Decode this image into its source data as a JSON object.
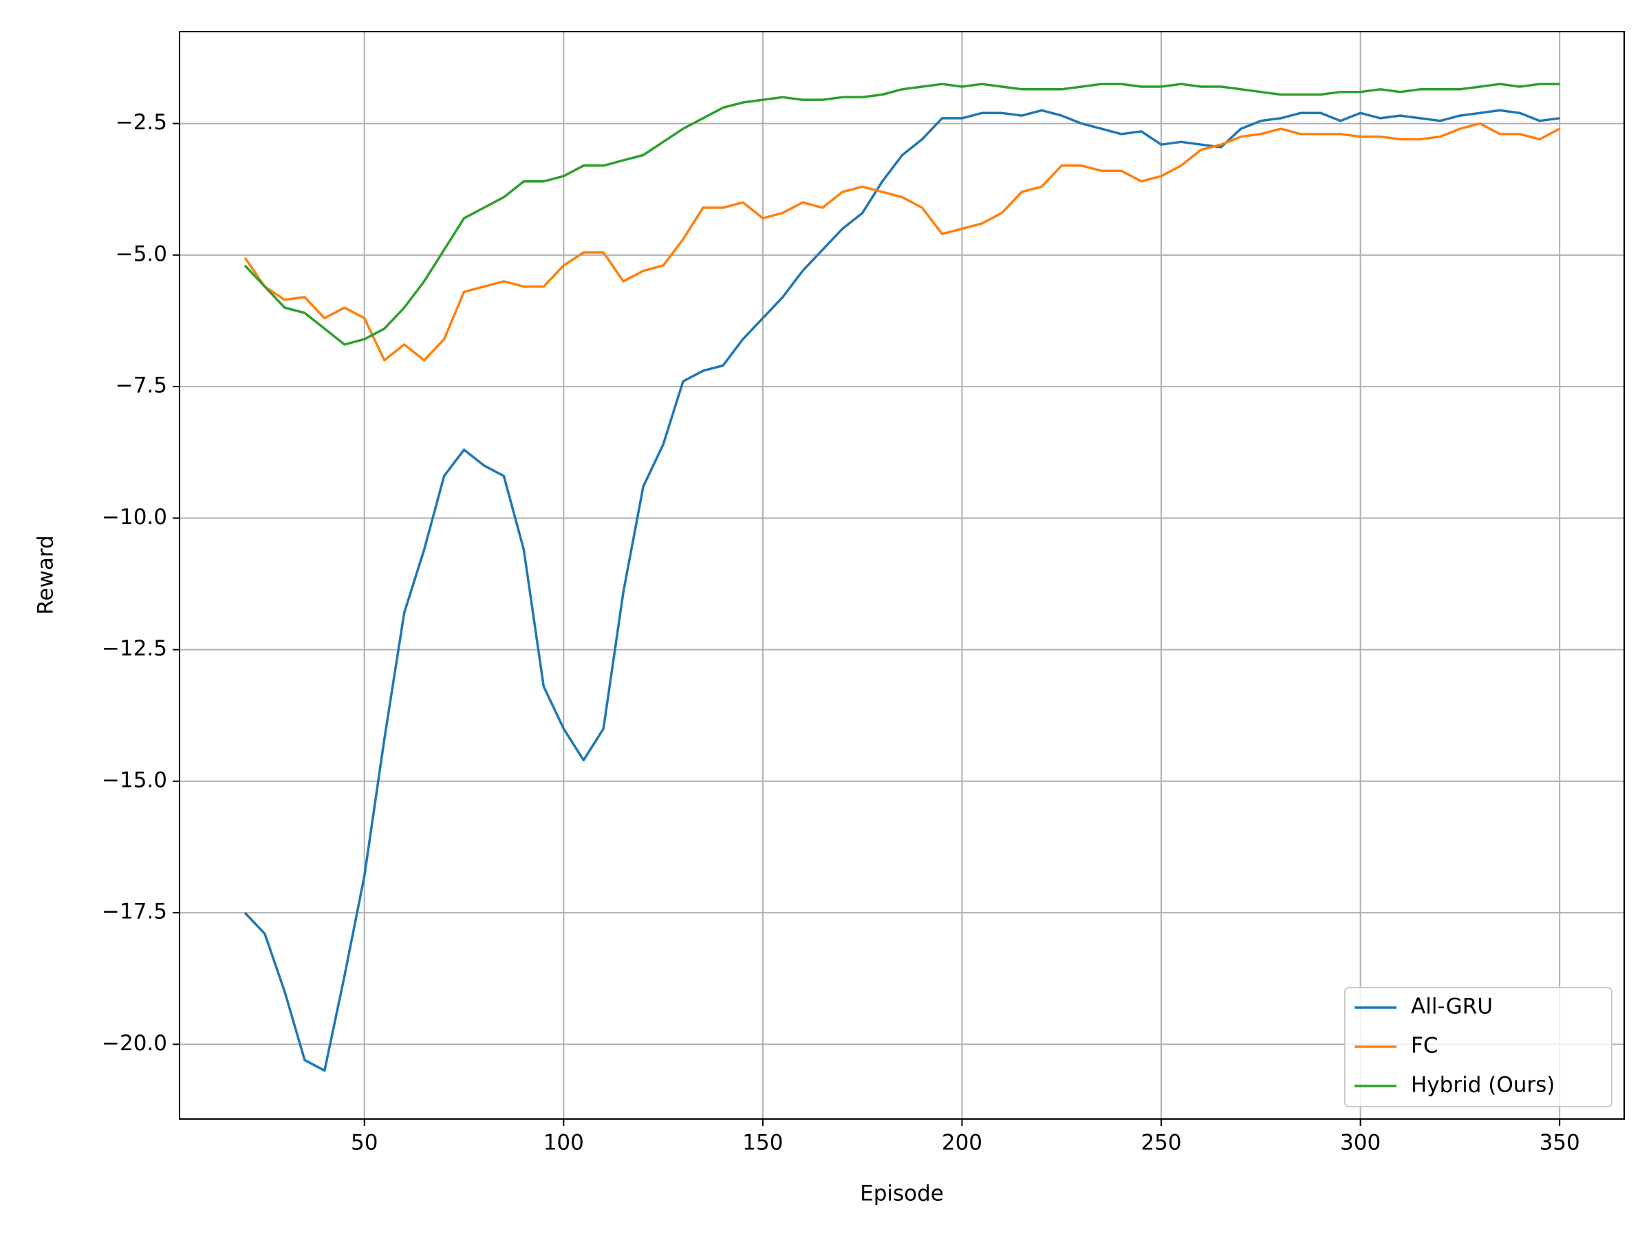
{
  "chart_data": {
    "type": "line",
    "xlabel": "Episode",
    "ylabel": "Reward",
    "x": [
      20,
      25,
      30,
      35,
      40,
      45,
      50,
      55,
      60,
      65,
      70,
      75,
      80,
      85,
      90,
      95,
      100,
      105,
      110,
      115,
      120,
      125,
      130,
      135,
      140,
      145,
      150,
      155,
      160,
      165,
      170,
      175,
      180,
      185,
      190,
      195,
      200,
      205,
      210,
      215,
      220,
      225,
      230,
      235,
      240,
      245,
      250,
      255,
      260,
      265,
      270,
      275,
      280,
      285,
      290,
      295,
      300,
      305,
      310,
      315,
      320,
      325,
      330,
      335,
      340,
      345,
      350
    ],
    "series": [
      {
        "name": "All-GRU",
        "color": "#1f77b4",
        "values": [
          -17.5,
          -17.9,
          -19.0,
          -20.3,
          -20.5,
          -18.7,
          -16.8,
          -14.2,
          -11.8,
          -10.6,
          -9.2,
          -8.7,
          -9.0,
          -9.2,
          -10.6,
          -13.2,
          -14.0,
          -14.6,
          -14.0,
          -11.4,
          -9.4,
          -8.6,
          -7.4,
          -7.2,
          -7.1,
          -6.6,
          -6.2,
          -5.8,
          -5.3,
          -4.9,
          -4.5,
          -4.2,
          -3.6,
          -3.1,
          -2.8,
          -2.4,
          -2.4,
          -2.3,
          -2.3,
          -2.35,
          -2.25,
          -2.35,
          -2.5,
          -2.6,
          -2.7,
          -2.65,
          -2.9,
          -2.85,
          -2.9,
          -2.95,
          -2.6,
          -2.45,
          -2.4,
          -2.3,
          -2.3,
          -2.45,
          -2.3,
          -2.4,
          -2.35,
          -2.4,
          -2.45,
          -2.35,
          -2.3,
          -2.25,
          -2.3,
          -2.45,
          -2.4
        ]
      },
      {
        "name": "FC",
        "color": "#ff7f0e",
        "values": [
          -5.05,
          -5.6,
          -5.85,
          -5.8,
          -6.2,
          -6.0,
          -6.2,
          -7.0,
          -6.7,
          -7.0,
          -6.6,
          -5.7,
          -5.6,
          -5.5,
          -5.6,
          -5.6,
          -5.2,
          -4.95,
          -4.95,
          -5.5,
          -5.3,
          -5.2,
          -4.7,
          -4.1,
          -4.1,
          -4.0,
          -4.3,
          -4.2,
          -4.0,
          -4.1,
          -3.8,
          -3.7,
          -3.8,
          -3.9,
          -4.1,
          -4.6,
          -4.5,
          -4.4,
          -4.2,
          -3.8,
          -3.7,
          -3.3,
          -3.3,
          -3.4,
          -3.4,
          -3.6,
          -3.5,
          -3.3,
          -3.0,
          -2.9,
          -2.75,
          -2.7,
          -2.6,
          -2.7,
          -2.7,
          -2.7,
          -2.75,
          -2.75,
          -2.8,
          -2.8,
          -2.75,
          -2.6,
          -2.5,
          -2.7,
          -2.7,
          -2.8,
          -2.6
        ]
      },
      {
        "name": "Hybrid (Ours)",
        "color": "#2ca02c",
        "values": [
          -5.2,
          -5.6,
          -6.0,
          -6.1,
          -6.4,
          -6.7,
          -6.6,
          -6.4,
          -6.0,
          -5.5,
          -4.9,
          -4.3,
          -4.1,
          -3.9,
          -3.6,
          -3.6,
          -3.5,
          -3.3,
          -3.3,
          -3.2,
          -3.1,
          -2.85,
          -2.6,
          -2.4,
          -2.2,
          -2.1,
          -2.05,
          -2.0,
          -2.05,
          -2.05,
          -2.0,
          -2.0,
          -1.95,
          -1.85,
          -1.8,
          -1.75,
          -1.8,
          -1.75,
          -1.8,
          -1.85,
          -1.85,
          -1.85,
          -1.8,
          -1.75,
          -1.75,
          -1.8,
          -1.8,
          -1.75,
          -1.8,
          -1.8,
          -1.85,
          -1.9,
          -1.95,
          -1.95,
          -1.95,
          -1.9,
          -1.9,
          -1.85,
          -1.9,
          -1.85,
          -1.85,
          -1.85,
          -1.8,
          -1.75,
          -1.8,
          -1.75,
          -1.75
        ]
      }
    ],
    "xlim": [
      3.6,
      366.2
    ],
    "ylim": [
      -21.42,
      -0.754
    ],
    "xticks": [
      50,
      100,
      150,
      200,
      250,
      300,
      350
    ],
    "yticks": [
      {
        "value": -20,
        "label": "−20.0"
      },
      {
        "value": -17.5,
        "label": "−17.5"
      },
      {
        "value": -15,
        "label": "−15.0"
      },
      {
        "value": -12.5,
        "label": "−12.5"
      },
      {
        "value": -10,
        "label": "−10.0"
      },
      {
        "value": -7.5,
        "label": "−7.5"
      },
      {
        "value": -5,
        "label": "−5.0"
      },
      {
        "value": -2.5,
        "label": "−2.5"
      }
    ],
    "grid": true,
    "legend": "lower-right"
  }
}
